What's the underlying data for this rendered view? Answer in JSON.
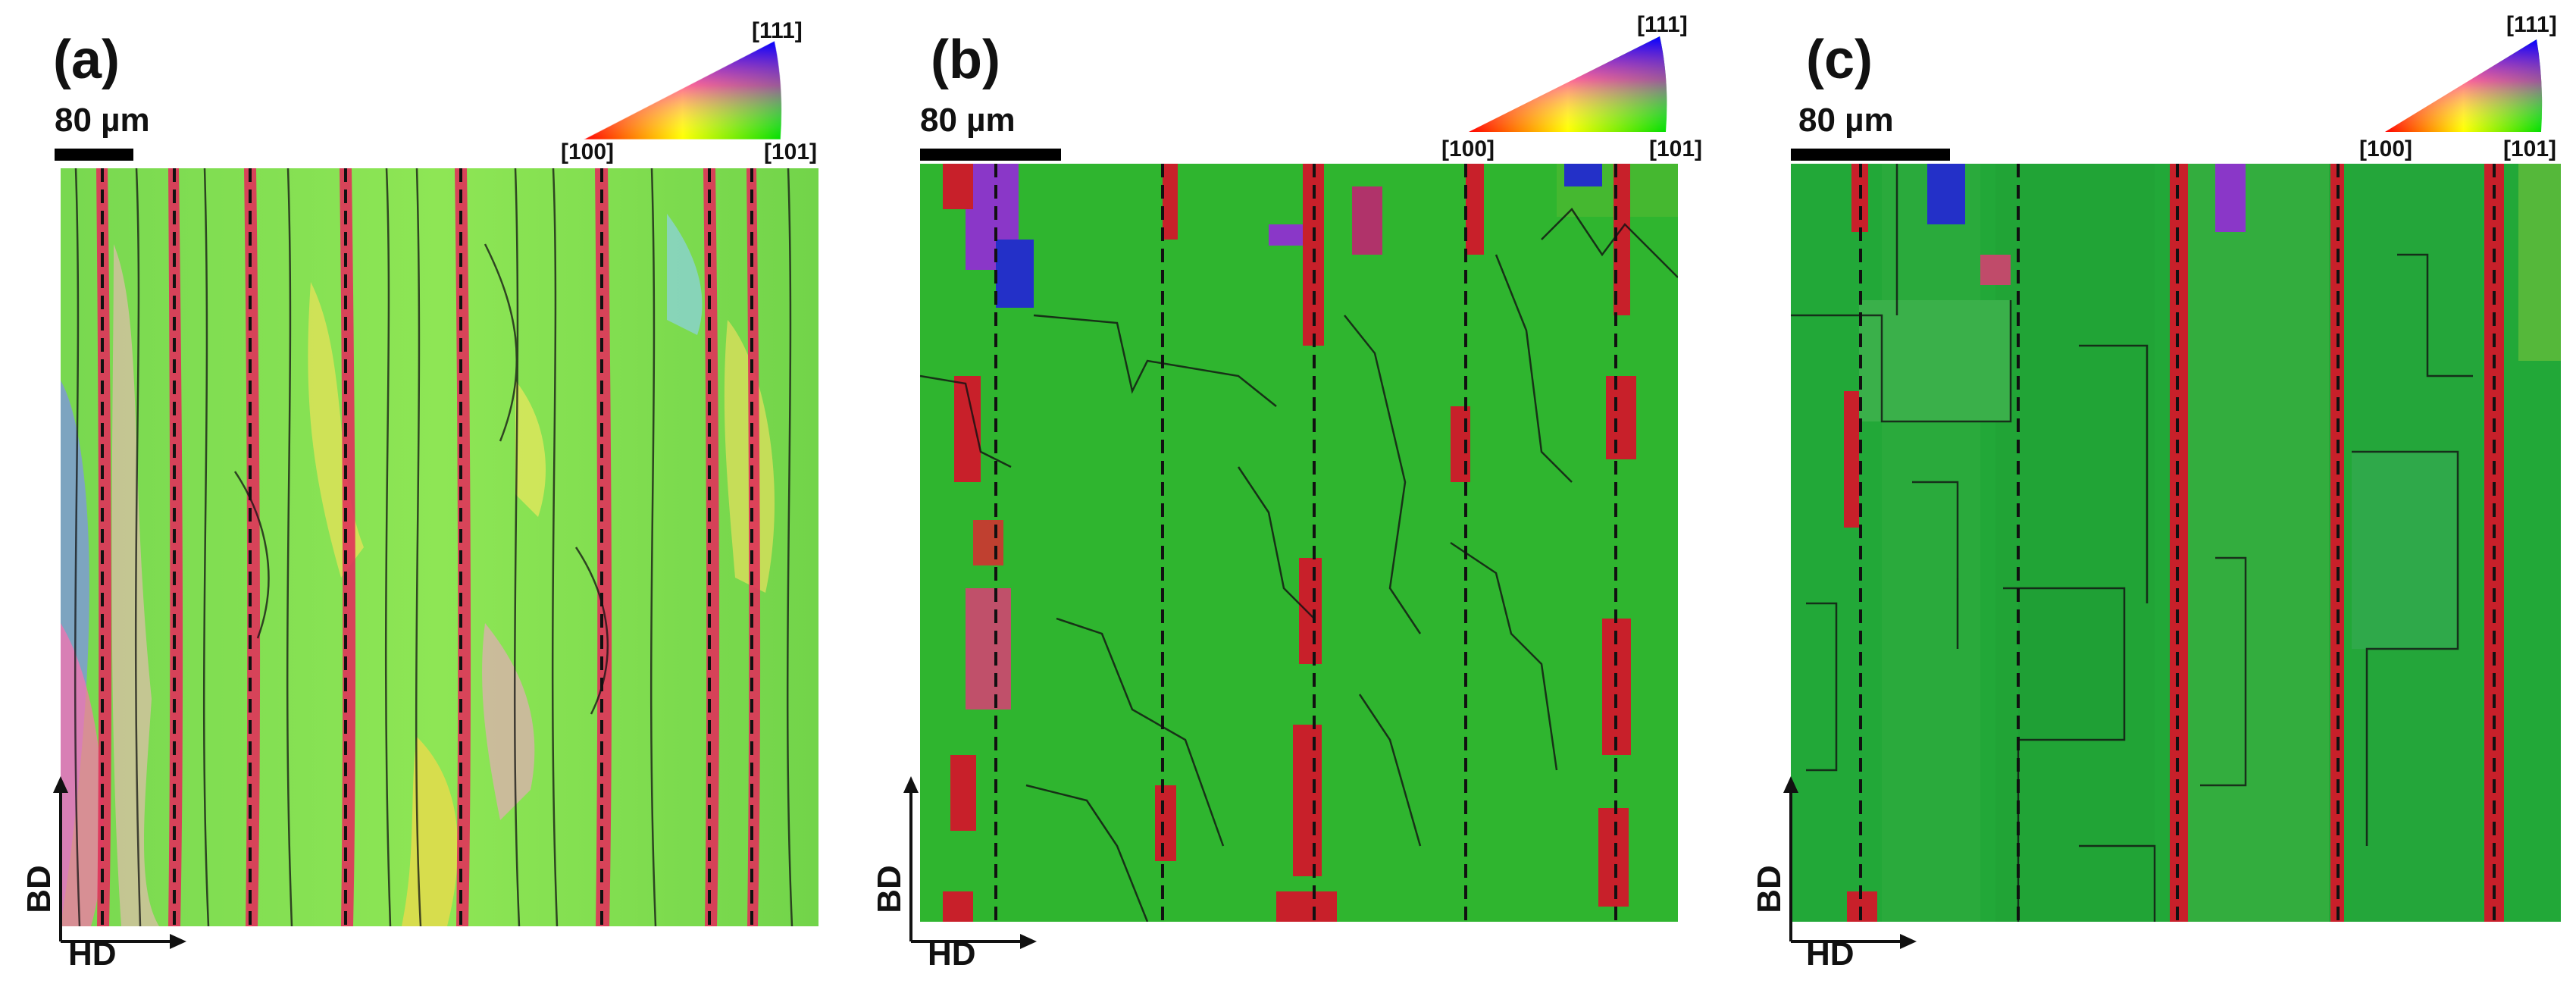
{
  "panels": [
    {
      "label": "(a)",
      "scale_bar": "80 µm",
      "ipf_key": {
        "top": "[111]",
        "left": "[100]",
        "right": "[101]"
      },
      "axes": {
        "vertical": "BD",
        "horizontal": "HD"
      }
    },
    {
      "label": "(b)",
      "scale_bar": "80 µm",
      "ipf_key": {
        "top": "[111]",
        "left": "[100]",
        "right": "[101]"
      },
      "axes": {
        "vertical": "BD",
        "horizontal": "HD"
      }
    },
    {
      "label": "(c)",
      "scale_bar": "80 µm",
      "ipf_key": {
        "top": "[111]",
        "left": "[100]",
        "right": "[101]"
      },
      "axes": {
        "vertical": "BD",
        "horizontal": "HD"
      }
    }
  ],
  "colors": {
    "green_101": "#2fb52f",
    "red_100": "#d01a25",
    "blue_111": "#2330c8",
    "purple": "#8a37c8",
    "light_green_a": "#7fe04a",
    "boundary": "#111111"
  }
}
